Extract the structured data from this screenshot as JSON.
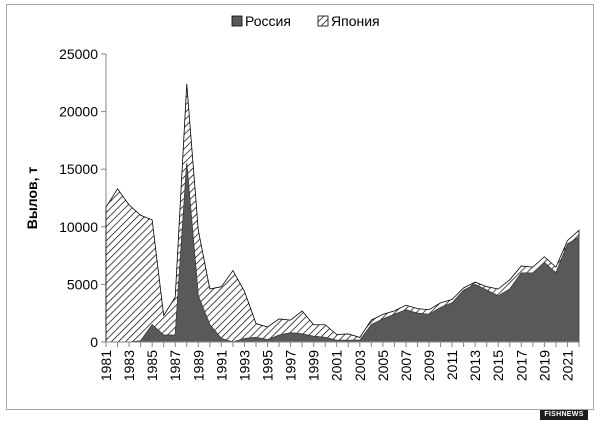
{
  "chart_data": {
    "type": "area",
    "stacked": true,
    "title": "",
    "ylabel": "Вылов, т",
    "xlabel": "",
    "ylim": [
      0,
      25000
    ],
    "yticks": [
      0,
      5000,
      10000,
      15000,
      20000,
      25000
    ],
    "x": [
      1981,
      1982,
      1983,
      1984,
      1985,
      1986,
      1987,
      1988,
      1989,
      1990,
      1991,
      1992,
      1993,
      1994,
      1995,
      1996,
      1997,
      1998,
      1999,
      2000,
      2001,
      2002,
      2003,
      2004,
      2005,
      2006,
      2007,
      2008,
      2009,
      2010,
      2011,
      2012,
      2013,
      2014,
      2015,
      2016,
      2017,
      2018,
      2019,
      2020,
      2021,
      2022
    ],
    "xtick_labels": [
      "1981",
      "1983",
      "1985",
      "1987",
      "1989",
      "1991",
      "1993",
      "1995",
      "1997",
      "1999",
      "2001",
      "2003",
      "2005",
      "2007",
      "2009",
      "2011",
      "2013",
      "2015",
      "2017",
      "2019",
      "2021"
    ],
    "series": [
      {
        "name": "Россия",
        "fill": "solid-dark",
        "values": [
          0,
          0,
          0,
          100,
          1500,
          600,
          600,
          15500,
          4000,
          1500,
          300,
          0,
          300,
          400,
          200,
          600,
          800,
          700,
          500,
          400,
          150,
          150,
          150,
          1500,
          2000,
          2400,
          2800,
          2500,
          2400,
          3000,
          3400,
          4500,
          5000,
          4500,
          4000,
          4600,
          6000,
          6000,
          6900,
          6000,
          8500,
          9100
        ]
      },
      {
        "name": "Япония",
        "fill": "hatched",
        "values": [
          11700,
          13300,
          11900,
          10900,
          9100,
          1700,
          3300,
          6900,
          5700,
          3100,
          4500,
          6200,
          4100,
          1200,
          1100,
          1400,
          1100,
          2000,
          1000,
          1100,
          500,
          550,
          250,
          400,
          400,
          300,
          400,
          400,
          400,
          400,
          300,
          200,
          200,
          300,
          600,
          800,
          600,
          500,
          500,
          500,
          300,
          600
        ]
      }
    ],
    "legend_position": "top-center",
    "grid": false,
    "colors": {
      "russia": "#595959",
      "japan_hatch": "#000000",
      "axis": "#868686"
    }
  },
  "watermark": "FISHNEWS"
}
